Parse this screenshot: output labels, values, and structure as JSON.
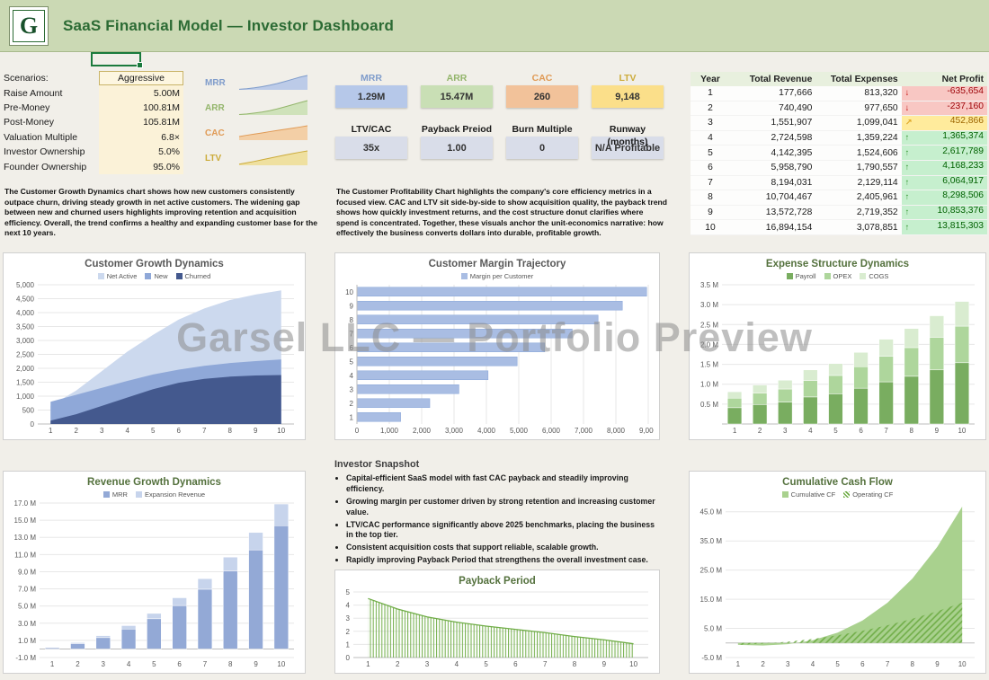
{
  "header": {
    "title": "SaaS Financial Model — Investor Dashboard",
    "logo_letter": "G"
  },
  "watermark": {
    "text": "Garsel LLC — Portfolio Preview"
  },
  "scenario": {
    "rows": [
      {
        "label": "Scenarios:",
        "value": "Aggressive",
        "highlight": true
      },
      {
        "label": "Raise Amount",
        "value": "5.00M"
      },
      {
        "label": "Pre-Money",
        "value": "100.81M"
      },
      {
        "label": "Post-Money",
        "value": "105.81M"
      },
      {
        "label": "Valuation Multiple",
        "value": "6.8×"
      },
      {
        "label": "Investor Ownership",
        "value": "5.0%"
      },
      {
        "label": "Founder Ownership",
        "value": "95.0%"
      }
    ]
  },
  "sparklines": [
    {
      "label": "MRR",
      "label_color": "#7f9ccb",
      "line": "#7f9ccb",
      "fill": "#bccbe8",
      "values": [
        4,
        8,
        14,
        22,
        32,
        44,
        58,
        73,
        88,
        100
      ]
    },
    {
      "label": "ARR",
      "label_color": "#93b56b",
      "line": "#93b56b",
      "fill": "#cfe2ba",
      "values": [
        3,
        7,
        13,
        20,
        30,
        42,
        56,
        71,
        86,
        100
      ]
    },
    {
      "label": "CAC",
      "label_color": "#e09a55",
      "line": "#e09a55",
      "fill": "#f3cfa6",
      "values": [
        25,
        34,
        42,
        50,
        59,
        67,
        75,
        83,
        91,
        100
      ]
    },
    {
      "label": "LTV",
      "label_color": "#ccab3a",
      "line": "#ccab3a",
      "fill": "#efe0a0",
      "values": [
        8,
        17,
        27,
        38,
        49,
        60,
        71,
        81,
        91,
        100
      ]
    }
  ],
  "kpis": {
    "row1": [
      {
        "label": "MRR",
        "value": "1.29M",
        "label_color": "#7f9ccb",
        "bg": "#b6c8e9"
      },
      {
        "label": "ARR",
        "value": "15.47M",
        "label_color": "#93b56b",
        "bg": "#c9dfb5"
      },
      {
        "label": "CAC",
        "value": "260",
        "label_color": "#e09a55",
        "bg": "#f2c29a"
      },
      {
        "label": "LTV",
        "value": "9,148",
        "label_color": "#ccab3a",
        "bg": "#fbdf8a"
      }
    ],
    "row2": [
      {
        "label": "LTV/CAC",
        "value": "35x",
        "bg": "#d9dde9"
      },
      {
        "label": "Payback Preiod",
        "value": "1.00",
        "bg": "#d9dde9"
      },
      {
        "label": "Burn Multiple",
        "value": "0",
        "bg": "#d9dde9"
      },
      {
        "label": "Runway (months)",
        "value": "N/A Profitable",
        "bg": "#d9dde9"
      }
    ]
  },
  "notes": {
    "left": "The Customer Growth Dynamics chart shows how new customers consistently outpace churn, driving steady growth in net active customers. The widening gap between new and churned users highlights improving retention and acquisition efficiency. Overall, the trend confirms a healthy and expanding customer base for the next 10 years.",
    "middle": "The Customer Profitability Chart highlights the company's core efficiency metrics in a focused view. CAC and LTV sit side-by-side to show acquisition quality, the payback trend shows how quickly investment returns, and the cost structure donut clarifies where spend is concentrated. Together, these visuals anchor the unit-economics narrative: how effectively the business converts dollars into durable, profitable growth."
  },
  "pnl_table": {
    "headers": [
      "Year",
      "Total Revenue",
      "Total Expenses",
      "Net Profit"
    ],
    "icons": {
      "bad": "↓",
      "neutral": "↗",
      "good": "↑"
    },
    "rows": [
      {
        "year": "1",
        "revenue": "177,666",
        "expenses": "813,320",
        "profit": "-635,654",
        "status": "bad"
      },
      {
        "year": "2",
        "revenue": "740,490",
        "expenses": "977,650",
        "profit": "-237,160",
        "status": "bad"
      },
      {
        "year": "3",
        "revenue": "1,551,907",
        "expenses": "1,099,041",
        "profit": "452,866",
        "status": "neutral"
      },
      {
        "year": "4",
        "revenue": "2,724,598",
        "expenses": "1,359,224",
        "profit": "1,365,374",
        "status": "good"
      },
      {
        "year": "5",
        "revenue": "4,142,395",
        "expenses": "1,524,606",
        "profit": "2,617,789",
        "status": "good"
      },
      {
        "year": "6",
        "revenue": "5,958,790",
        "expenses": "1,790,557",
        "profit": "4,168,233",
        "status": "good"
      },
      {
        "year": "7",
        "revenue": "8,194,031",
        "expenses": "2,129,114",
        "profit": "6,064,917",
        "status": "good"
      },
      {
        "year": "8",
        "revenue": "10,704,467",
        "expenses": "2,405,961",
        "profit": "8,298,506",
        "status": "good"
      },
      {
        "year": "9",
        "revenue": "13,572,728",
        "expenses": "2,719,352",
        "profit": "10,853,376",
        "status": "good"
      },
      {
        "year": "10",
        "revenue": "16,894,154",
        "expenses": "3,078,851",
        "profit": "13,815,303",
        "status": "good"
      }
    ]
  },
  "snapshot": {
    "title": "Investor Snapshot",
    "bullets": [
      "Capital-efficient SaaS model with fast CAC payback and steadily improving efficiency.",
      "Growing margin per customer driven by strong retention and increasing customer value.",
      "LTV/CAC performance significantly above 2025 benchmarks, placing the business in the top tier.",
      "Consistent acquisition costs that support reliable, scalable growth.",
      "Rapidly improving Payback Period that strengthens the overall investment case."
    ]
  },
  "chart_data": [
    {
      "id": "customer-growth",
      "type": "area",
      "title": "Customer Growth Dynamics",
      "title_color": "#595959",
      "x": [
        1,
        2,
        3,
        4,
        5,
        6,
        7,
        8,
        9,
        10
      ],
      "ylim": [
        0,
        5000
      ],
      "yticks": [
        0,
        500,
        1000,
        1500,
        2000,
        2500,
        3000,
        3500,
        4000,
        4500,
        5000
      ],
      "tickfmt": "commas",
      "ml": 32,
      "series": [
        {
          "name": "Net Active",
          "color": "#ccd9ee",
          "values": [
            650,
            1200,
            1900,
            2600,
            3200,
            3750,
            4150,
            4450,
            4650,
            4800
          ]
        },
        {
          "name": "New",
          "color": "#8fa8d8",
          "values": [
            800,
            1050,
            1300,
            1550,
            1780,
            1950,
            2090,
            2190,
            2260,
            2320
          ]
        },
        {
          "name": "Churned",
          "color": "#44598e",
          "values": [
            120,
            350,
            650,
            950,
            1250,
            1480,
            1620,
            1700,
            1740,
            1760
          ]
        }
      ]
    },
    {
      "id": "margin-trajectory",
      "type": "hbar",
      "title": "Customer Margin Trajectory",
      "title_color": "#595959",
      "legend": [
        {
          "name": "Margin per Customer",
          "color": "#a9bde3"
        }
      ],
      "categories": [
        10,
        9,
        8,
        7,
        6,
        5,
        4,
        3,
        2,
        1
      ],
      "values": [
        8950,
        8200,
        7450,
        6650,
        5800,
        4950,
        4050,
        3150,
        2250,
        1350
      ],
      "xlim": [
        0,
        9000
      ],
      "xticks": [
        0,
        1000,
        2000,
        3000,
        4000,
        5000,
        6000,
        7000,
        8000,
        9000
      ],
      "bar_color": "#a9bde3",
      "bar_border": "#8ea9db",
      "ml": 18
    },
    {
      "id": "expense-structure",
      "type": "stacked-column",
      "title": "Expense Structure Dynamics",
      "title_color": "#54713d",
      "categories": [
        1,
        2,
        3,
        4,
        5,
        6,
        7,
        8,
        9,
        10
      ],
      "ylim": [
        0,
        3.5
      ],
      "yticks": [
        0.5,
        1,
        1.5,
        2,
        2.5,
        3,
        3.5
      ],
      "tickfmt": "m",
      "ml": 30,
      "series": [
        {
          "name": "Payroll",
          "color": "#79ad60",
          "values": [
            0.41,
            0.49,
            0.55,
            0.68,
            0.76,
            0.9,
            1.06,
            1.2,
            1.36,
            1.54
          ]
        },
        {
          "name": "OPEX",
          "color": "#aed69c",
          "values": [
            0.24,
            0.29,
            0.33,
            0.41,
            0.46,
            0.54,
            0.64,
            0.72,
            0.82,
            0.92
          ]
        },
        {
          "name": "COGS",
          "color": "#d9ecd0",
          "values": [
            0.16,
            0.2,
            0.22,
            0.27,
            0.3,
            0.36,
            0.43,
            0.48,
            0.54,
            0.62
          ]
        }
      ]
    },
    {
      "id": "revenue-growth",
      "type": "stacked-column",
      "title": "Revenue Growth Dynamics",
      "title_color": "#54713d",
      "categories": [
        1,
        2,
        3,
        4,
        5,
        6,
        7,
        8,
        9,
        10
      ],
      "ylim": [
        -1,
        17
      ],
      "yticks": [
        -1,
        1,
        3,
        5,
        7,
        9,
        11,
        13,
        15,
        17
      ],
      "tickfmt": "m",
      "ml": 34,
      "series": [
        {
          "name": "MRR",
          "color": "#93a9d6",
          "values": [
            0.15,
            0.63,
            1.32,
            2.32,
            3.52,
            5.06,
            6.96,
            9.1,
            11.54,
            14.36
          ]
        },
        {
          "name": "Expansion Revenue",
          "color": "#c7d4ec",
          "values": [
            0.03,
            0.11,
            0.23,
            0.4,
            0.62,
            0.9,
            1.23,
            1.6,
            2.03,
            2.53
          ]
        }
      ]
    },
    {
      "id": "payback-period",
      "type": "area-line",
      "title": "Payback Period",
      "title_color": "#54713d",
      "legend": false,
      "x": [
        1,
        2,
        3,
        4,
        5,
        6,
        7,
        8,
        9,
        10
      ],
      "values": [
        4.5,
        3.7,
        3.1,
        2.7,
        2.4,
        2.15,
        1.9,
        1.6,
        1.35,
        1.05
      ],
      "ylim": [
        0,
        5
      ],
      "yticks": [
        0,
        1,
        2,
        3,
        4,
        5
      ],
      "tickfmt": "int",
      "ml": 14,
      "color": "#70ad47"
    },
    {
      "id": "cumulative-cashflow",
      "type": "area",
      "title": "Cumulative Cash Flow",
      "title_color": "#54713d",
      "x": [
        1,
        2,
        3,
        4,
        5,
        6,
        7,
        8,
        9,
        10
      ],
      "ylim": [
        -5,
        48
      ],
      "yticks": [
        -5,
        5,
        15,
        25,
        35,
        45
      ],
      "tickfmt": "m",
      "ml": 34,
      "series": [
        {
          "name": "Cumulative CF",
          "color": "#a9d18e",
          "values": [
            -0.64,
            -0.87,
            -0.42,
            0.94,
            3.56,
            7.73,
            13.8,
            22.09,
            32.95,
            46.76
          ]
        },
        {
          "name": "Operating CF",
          "color": "#70ad47",
          "hatch": true,
          "values": [
            -0.64,
            -0.24,
            0.45,
            1.37,
            2.62,
            4.17,
            6.06,
            8.3,
            10.85,
            13.82
          ]
        }
      ]
    }
  ]
}
